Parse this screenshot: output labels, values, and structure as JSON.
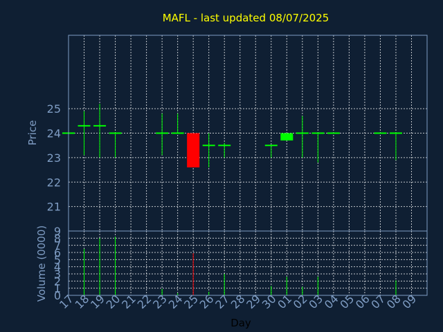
{
  "chart_data": {
    "type": "candlestick",
    "title": "MAFL - last updated 08/07/2025",
    "price_panel": {
      "ylabel": "Price",
      "ylim": [
        20,
        28
      ],
      "yticks": [
        21,
        22,
        23,
        24,
        25
      ]
    },
    "volume_panel": {
      "ylabel": "Volume (0000)",
      "ylim": [
        0,
        9
      ],
      "yticks": [
        0,
        1,
        2,
        3,
        4,
        5,
        6,
        7,
        8,
        9
      ]
    },
    "xlabel": "Day",
    "xticks": [
      "17",
      "18",
      "19",
      "20",
      "21",
      "22",
      "23",
      "24",
      "25",
      "26",
      "27",
      "28",
      "29",
      "30",
      "01",
      "02",
      "03",
      "04",
      "05",
      "06",
      "07",
      "08",
      "09"
    ],
    "candles": [
      {
        "day": "17",
        "open": 24.0,
        "high": 24.0,
        "low": 24.0,
        "close": 24.0,
        "volume": 0.0
      },
      {
        "day": "18",
        "open": 24.3,
        "high": 24.9,
        "low": 23.1,
        "close": 24.3,
        "volume": 6.5
      },
      {
        "day": "19",
        "open": 24.3,
        "high": 25.2,
        "low": 23.0,
        "close": 24.3,
        "volume": 8.0
      },
      {
        "day": "20",
        "open": 24.0,
        "high": 24.0,
        "low": 23.0,
        "close": 24.0,
        "volume": 8.2
      },
      {
        "day": "23",
        "open": 24.0,
        "high": 24.8,
        "low": 23.1,
        "close": 24.0,
        "volume": 0.9
      },
      {
        "day": "24",
        "open": 24.0,
        "high": 24.8,
        "low": 24.0,
        "close": 24.0,
        "volume": 0.3
      },
      {
        "day": "25",
        "open": 24.0,
        "high": 24.0,
        "low": 22.6,
        "close": 22.6,
        "volume": 5.9
      },
      {
        "day": "26",
        "open": 23.5,
        "high": 24.0,
        "low": 22.6,
        "close": 23.5,
        "volume": 0.5
      },
      {
        "day": "27",
        "open": 23.5,
        "high": 23.6,
        "low": 23.0,
        "close": 23.5,
        "volume": 3.0
      },
      {
        "day": "30",
        "open": 23.5,
        "high": 23.5,
        "low": 23.0,
        "close": 23.5,
        "volume": 1.3
      },
      {
        "day": "01",
        "open": 23.7,
        "high": 24.0,
        "low": 23.7,
        "close": 24.0,
        "volume": 2.6
      },
      {
        "day": "02",
        "open": 24.0,
        "high": 24.7,
        "low": 23.0,
        "close": 24.0,
        "volume": 1.2
      },
      {
        "day": "03",
        "open": 24.0,
        "high": 24.0,
        "low": 22.8,
        "close": 24.0,
        "volume": 2.6
      },
      {
        "day": "04",
        "open": 24.0,
        "high": 24.0,
        "low": 24.0,
        "close": 24.0,
        "volume": 0.0
      },
      {
        "day": "07",
        "open": 24.0,
        "high": 24.0,
        "low": 24.0,
        "close": 24.0,
        "volume": 0.0
      },
      {
        "day": "08",
        "open": 24.0,
        "high": 24.0,
        "low": 22.9,
        "close": 24.0,
        "volume": 2.1
      }
    ],
    "colors": {
      "background": "#0f1f33",
      "axis": "#7f9dc4",
      "grid": "#ffffff",
      "up": "#00ff00",
      "down": "#ff0000",
      "title": "#ffff00",
      "xlabel": "#000000"
    }
  }
}
